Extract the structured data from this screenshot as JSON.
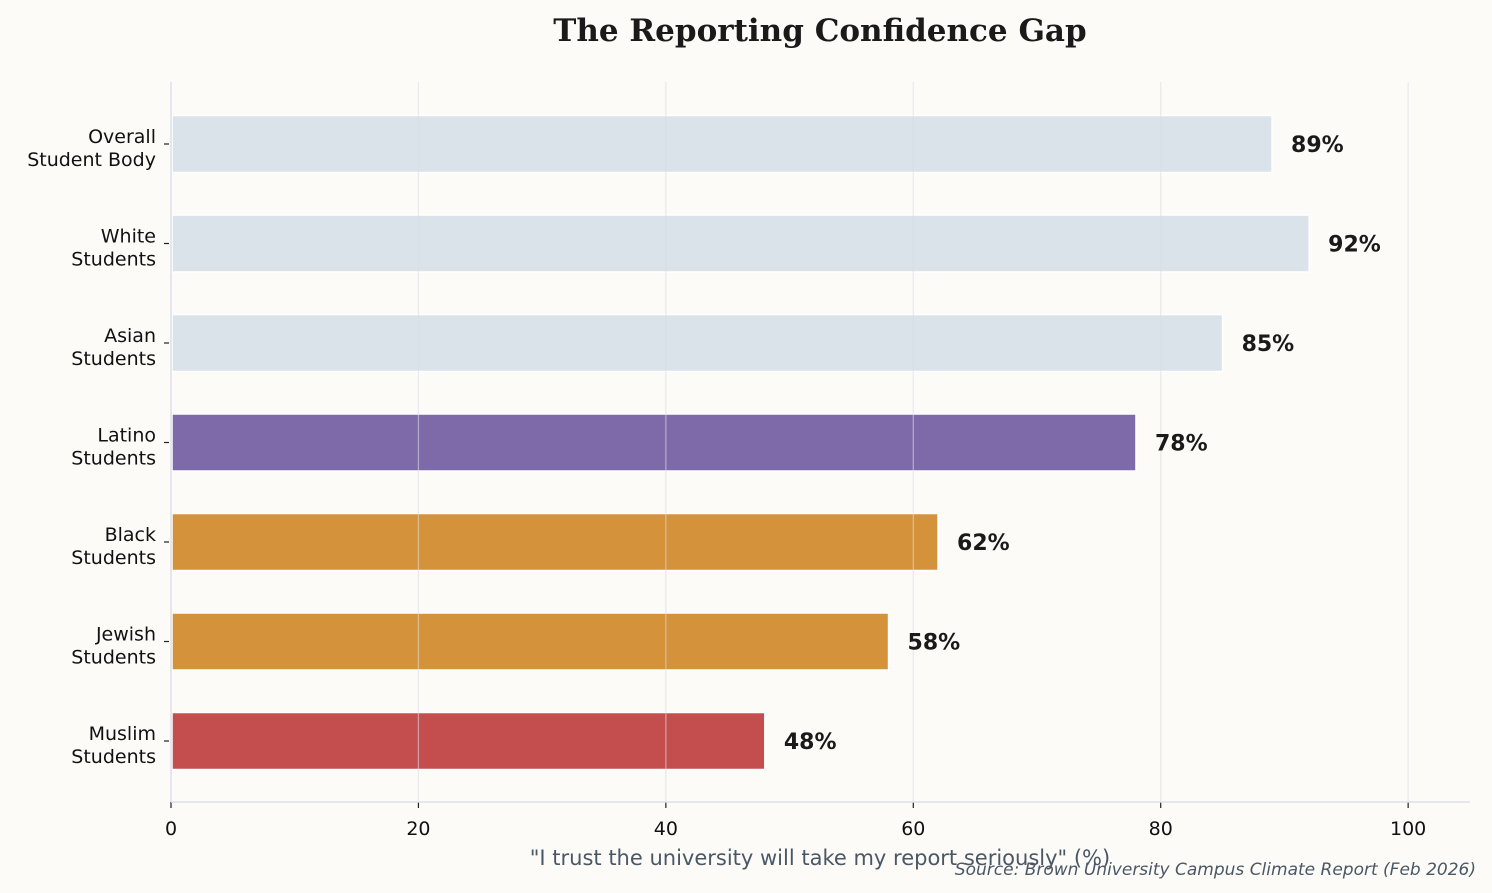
{
  "chart_data": {
    "type": "bar",
    "orientation": "horizontal",
    "title": "The Reporting Confidence Gap",
    "xlabel": "\"I trust the university will take my report seriously\" (%)",
    "ylabel": "",
    "source": "Source: Brown University Campus Climate Report (Feb 2026)",
    "categories": [
      [
        "Overall",
        "Student Body"
      ],
      [
        "White",
        "Students"
      ],
      [
        "Asian",
        "Students"
      ],
      [
        "Latino",
        "Students"
      ],
      [
        "Black",
        "Students"
      ],
      [
        "Jewish",
        "Students"
      ],
      [
        "Muslim",
        "Students"
      ]
    ],
    "values": [
      89,
      92,
      85,
      78,
      62,
      58,
      48
    ],
    "data_labels": [
      "89%",
      "92%",
      "85%",
      "78%",
      "62%",
      "58%",
      "48%"
    ],
    "colors": [
      "#dae2ea",
      "#dae2ea",
      "#dae2ea",
      "#7e6aa8",
      "#d4923a",
      "#d4923a",
      "#c44e4e"
    ],
    "xlim": [
      0,
      105
    ],
    "xticks": [
      0,
      20,
      40,
      60,
      80,
      100
    ],
    "grid": "vertical",
    "background": "#fcfbf8"
  }
}
